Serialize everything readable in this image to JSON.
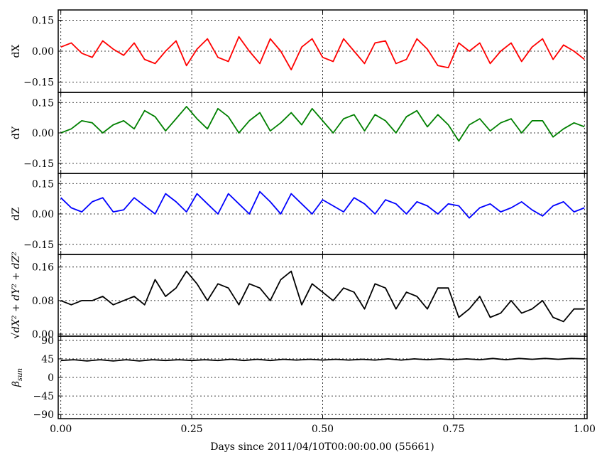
{
  "chart_data": {
    "type": "line",
    "xlabel": "Days since 2011/04/10T00:00:00.00 (55661)",
    "xlim": [
      -0.005,
      1.005
    ],
    "xticks": [
      0.0,
      0.25,
      0.5,
      0.75,
      1.0
    ],
    "xtick_labels": [
      "0.00",
      "0.25",
      "0.50",
      "0.75",
      "1.00"
    ],
    "grid": true,
    "panels": [
      {
        "id": "dx",
        "ylabel": "dX",
        "ylim": [
          -0.2,
          0.2
        ],
        "yticks": [
          0.15,
          0.0,
          -0.15
        ],
        "ytick_labels": [
          "0.15",
          "0.00",
          "−0.15"
        ],
        "color": "#ff0000",
        "series": [
          {
            "x": [
              0.0,
              0.02,
              0.04,
              0.06,
              0.08,
              0.1,
              0.12,
              0.14,
              0.16,
              0.18,
              0.2,
              0.22,
              0.24,
              0.26,
              0.28,
              0.3,
              0.32,
              0.34,
              0.36,
              0.38,
              0.4,
              0.42,
              0.44,
              0.46,
              0.48,
              0.5,
              0.52,
              0.54,
              0.56,
              0.58,
              0.6,
              0.62,
              0.64,
              0.66,
              0.68,
              0.7,
              0.72,
              0.74,
              0.76,
              0.78,
              0.8,
              0.82,
              0.84,
              0.86,
              0.88,
              0.9,
              0.92,
              0.94,
              0.96,
              0.98,
              1.0
            ],
            "values": [
              0.02,
              0.04,
              -0.01,
              -0.03,
              0.05,
              0.01,
              -0.02,
              0.04,
              -0.04,
              -0.06,
              0.0,
              0.05,
              -0.07,
              0.01,
              0.06,
              -0.03,
              -0.05,
              0.07,
              0.0,
              -0.06,
              0.06,
              0.0,
              -0.09,
              0.02,
              0.06,
              -0.03,
              -0.05,
              0.06,
              0.0,
              -0.06,
              0.04,
              0.05,
              -0.06,
              -0.04,
              0.06,
              0.01,
              -0.07,
              -0.08,
              0.04,
              0.0,
              0.04,
              -0.06,
              0.0,
              0.04,
              -0.05,
              0.02,
              0.06,
              -0.04,
              0.03,
              0.0,
              -0.04
            ]
          }
        ]
      },
      {
        "id": "dy",
        "ylabel": "dY",
        "ylim": [
          -0.2,
          0.2
        ],
        "yticks": [
          0.15,
          0.0,
          -0.15
        ],
        "ytick_labels": [
          "0.15",
          "0.00",
          "−0.15"
        ],
        "color": "#008000",
        "series": [
          {
            "x": [
              0.0,
              0.02,
              0.04,
              0.06,
              0.08,
              0.1,
              0.12,
              0.14,
              0.16,
              0.18,
              0.2,
              0.22,
              0.24,
              0.26,
              0.28,
              0.3,
              0.32,
              0.34,
              0.36,
              0.38,
              0.4,
              0.42,
              0.44,
              0.46,
              0.48,
              0.5,
              0.52,
              0.54,
              0.56,
              0.58,
              0.6,
              0.62,
              0.64,
              0.66,
              0.68,
              0.7,
              0.72,
              0.74,
              0.76,
              0.78,
              0.8,
              0.82,
              0.84,
              0.86,
              0.88,
              0.9,
              0.92,
              0.94,
              0.96,
              0.98,
              1.0
            ],
            "values": [
              0.0,
              0.02,
              0.06,
              0.05,
              0.0,
              0.04,
              0.06,
              0.02,
              0.11,
              0.08,
              0.01,
              0.07,
              0.13,
              0.07,
              0.02,
              0.12,
              0.08,
              0.0,
              0.06,
              0.1,
              0.01,
              0.05,
              0.1,
              0.04,
              0.12,
              0.06,
              0.0,
              0.07,
              0.09,
              0.01,
              0.09,
              0.06,
              0.0,
              0.08,
              0.11,
              0.03,
              0.09,
              0.04,
              -0.04,
              0.04,
              0.07,
              0.01,
              0.05,
              0.07,
              0.0,
              0.06,
              0.06,
              -0.02,
              0.02,
              0.05,
              0.03
            ]
          }
        ]
      },
      {
        "id": "dz",
        "ylabel": "dZ",
        "ylim": [
          -0.2,
          0.2
        ],
        "yticks": [
          0.15,
          0.0,
          -0.15
        ],
        "ytick_labels": [
          "0.15",
          "0.00",
          "−0.15"
        ],
        "color": "#0000ff",
        "series": [
          {
            "x": [
              0.0,
              0.02,
              0.04,
              0.06,
              0.08,
              0.1,
              0.12,
              0.14,
              0.16,
              0.18,
              0.2,
              0.22,
              0.24,
              0.26,
              0.28,
              0.3,
              0.32,
              0.34,
              0.36,
              0.38,
              0.4,
              0.42,
              0.44,
              0.46,
              0.48,
              0.5,
              0.52,
              0.54,
              0.56,
              0.58,
              0.6,
              0.62,
              0.64,
              0.66,
              0.68,
              0.7,
              0.72,
              0.74,
              0.76,
              0.78,
              0.8,
              0.82,
              0.84,
              0.86,
              0.88,
              0.9,
              0.92,
              0.94,
              0.96,
              0.98,
              1.0
            ],
            "values": [
              0.08,
              0.03,
              0.01,
              0.06,
              0.08,
              0.01,
              0.02,
              0.08,
              0.04,
              0.0,
              0.1,
              0.06,
              0.01,
              0.1,
              0.05,
              0.0,
              0.1,
              0.05,
              0.0,
              0.11,
              0.06,
              0.0,
              0.1,
              0.05,
              0.0,
              0.07,
              0.04,
              0.01,
              0.08,
              0.05,
              0.0,
              0.07,
              0.05,
              0.0,
              0.06,
              0.04,
              0.0,
              0.05,
              0.04,
              -0.02,
              0.03,
              0.05,
              0.01,
              0.03,
              0.06,
              0.02,
              -0.01,
              0.04,
              0.06,
              0.01,
              0.03
            ]
          }
        ]
      },
      {
        "id": "dmag",
        "ylabel": "√dX² + dY² + dZ²",
        "ylim": [
          -0.005,
          0.19
        ],
        "yticks": [
          0.16,
          0.08,
          0.0
        ],
        "ytick_labels": [
          "0.16",
          "0.08",
          "0.00"
        ],
        "color": "#000000",
        "series": [
          {
            "x": [
              0.0,
              0.02,
              0.04,
              0.06,
              0.08,
              0.1,
              0.12,
              0.14,
              0.16,
              0.18,
              0.2,
              0.22,
              0.24,
              0.26,
              0.28,
              0.3,
              0.32,
              0.34,
              0.36,
              0.38,
              0.4,
              0.42,
              0.44,
              0.46,
              0.48,
              0.5,
              0.52,
              0.54,
              0.56,
              0.58,
              0.6,
              0.62,
              0.64,
              0.66,
              0.68,
              0.7,
              0.72,
              0.74,
              0.76,
              0.78,
              0.8,
              0.82,
              0.84,
              0.86,
              0.88,
              0.9,
              0.92,
              0.94,
              0.96,
              0.98,
              1.0
            ],
            "values": [
              0.08,
              0.07,
              0.08,
              0.08,
              0.09,
              0.07,
              0.08,
              0.09,
              0.07,
              0.13,
              0.09,
              0.11,
              0.15,
              0.12,
              0.08,
              0.12,
              0.11,
              0.07,
              0.12,
              0.11,
              0.08,
              0.13,
              0.15,
              0.07,
              0.12,
              0.1,
              0.08,
              0.11,
              0.1,
              0.06,
              0.12,
              0.11,
              0.06,
              0.1,
              0.09,
              0.06,
              0.11,
              0.11,
              0.04,
              0.06,
              0.09,
              0.04,
              0.05,
              0.08,
              0.05,
              0.06,
              0.08,
              0.04,
              0.03,
              0.06,
              0.06
            ]
          }
        ]
      },
      {
        "id": "beta",
        "ylabel": "βsun",
        "ylim": [
          -100,
          100
        ],
        "yticks": [
          90,
          45,
          0,
          -45,
          -90
        ],
        "ytick_labels": [
          "90",
          "45",
          "0",
          "−45",
          "−90"
        ],
        "color": "#000000",
        "series": [
          {
            "x": [
              0.0,
              0.025,
              0.05,
              0.075,
              0.1,
              0.125,
              0.15,
              0.175,
              0.2,
              0.225,
              0.25,
              0.275,
              0.3,
              0.325,
              0.35,
              0.375,
              0.4,
              0.425,
              0.45,
              0.475,
              0.5,
              0.525,
              0.55,
              0.575,
              0.6,
              0.625,
              0.65,
              0.675,
              0.7,
              0.725,
              0.75,
              0.775,
              0.8,
              0.825,
              0.85,
              0.875,
              0.9,
              0.925,
              0.95,
              0.975,
              1.0
            ],
            "values": [
              41,
              43,
              40,
              43,
              40,
              43,
              40,
              43,
              41,
              43,
              41,
              43,
              41,
              44,
              41,
              44,
              41,
              44,
              42,
              44,
              42,
              44,
              42,
              44,
              42,
              45,
              42,
              45,
              43,
              45,
              43,
              45,
              43,
              46,
              43,
              46,
              44,
              46,
              44,
              46,
              45
            ]
          }
        ]
      }
    ]
  }
}
